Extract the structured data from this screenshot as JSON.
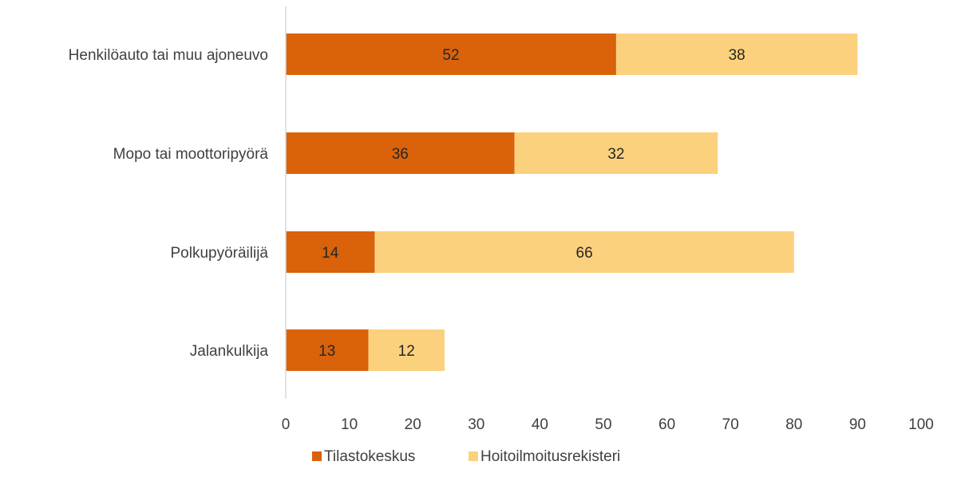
{
  "chart_data": {
    "type": "bar",
    "orientation": "horizontal",
    "stacked": true,
    "categories": [
      "Henkilöauto tai muu ajoneuvo",
      "Mopo tai moottoripyörä",
      "Polkupyöräilijä",
      "Jalankulkija"
    ],
    "series": [
      {
        "name": "Tilastokeskus",
        "values": [
          52,
          36,
          14,
          13
        ],
        "color": "#D9620B"
      },
      {
        "name": "Hoitoilmoitusrekisteri",
        "values": [
          38,
          32,
          66,
          12
        ],
        "color": "#FCD17D"
      }
    ],
    "xlim": [
      0,
      100
    ],
    "xticks": [
      0,
      10,
      20,
      30,
      40,
      50,
      60,
      70,
      80,
      90,
      100
    ],
    "data_labels": true,
    "grid": false,
    "legend_position": "bottom",
    "axis_color": "#D9D9D9",
    "text_color": "#404040"
  }
}
